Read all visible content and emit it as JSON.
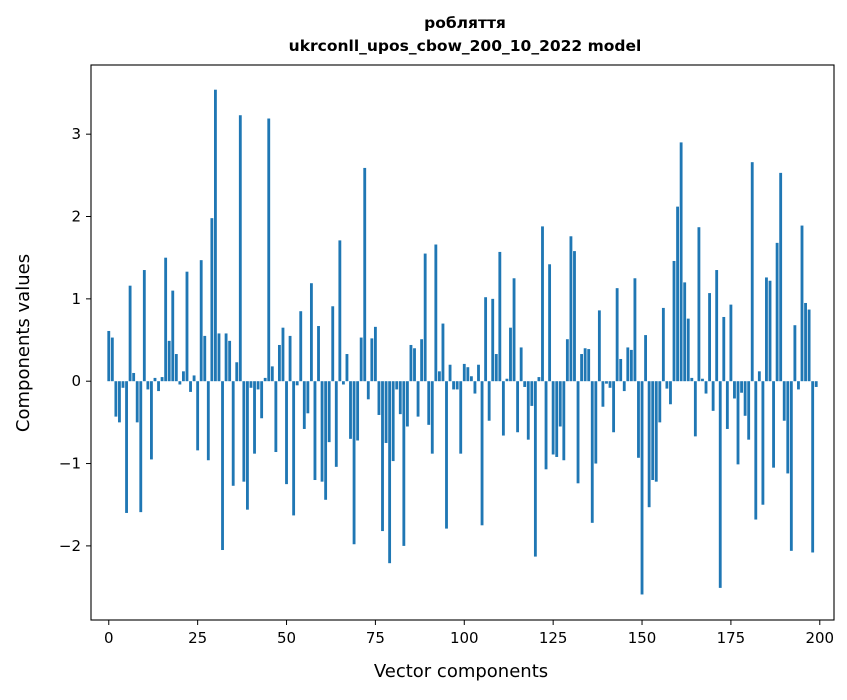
{
  "chart_data": {
    "type": "bar",
    "title_line1": "робляття",
    "title_line2": "ukrconll_upos_cbow_200_10_2022 model",
    "xlabel": "Vector components",
    "ylabel": "Components values",
    "xlim": [
      -5,
      204
    ],
    "ylim": [
      -2.9,
      3.84
    ],
    "xticks": [
      0,
      25,
      50,
      75,
      100,
      125,
      150,
      175,
      200
    ],
    "yticks": [
      -2,
      -1,
      0,
      1,
      2,
      3
    ],
    "ytick_labels": [
      "−2",
      "−1",
      "0",
      "1",
      "2",
      "3"
    ],
    "bar_color": "#1f77b4",
    "values": [
      0.61,
      0.53,
      -0.43,
      -0.5,
      -0.08,
      -1.6,
      1.16,
      0.1,
      -0.5,
      -1.59,
      1.35,
      -0.1,
      -0.95,
      0.04,
      -0.12,
      0.05,
      1.5,
      0.49,
      1.1,
      0.33,
      -0.04,
      0.12,
      1.33,
      -0.13,
      0.07,
      -0.84,
      1.47,
      0.55,
      -0.96,
      1.98,
      3.54,
      0.58,
      -2.05,
      0.58,
      0.49,
      -1.27,
      0.23,
      3.23,
      -1.22,
      -1.56,
      -0.08,
      -0.88,
      -0.1,
      -0.45,
      0.04,
      3.19,
      0.18,
      -0.86,
      0.44,
      0.65,
      -1.25,
      0.55,
      -1.63,
      -0.05,
      0.85,
      -0.58,
      -0.39,
      1.19,
      -1.2,
      0.67,
      -1.22,
      -1.44,
      -0.74,
      0.91,
      -1.04,
      1.71,
      -0.04,
      0.33,
      -0.7,
      -1.98,
      -0.72,
      0.53,
      2.59,
      -0.22,
      0.52,
      0.66,
      -0.41,
      -1.82,
      -0.75,
      -2.21,
      -0.97,
      -0.1,
      -0.4,
      -2.0,
      -0.55,
      0.44,
      0.4,
      -0.43,
      0.51,
      1.55,
      -0.53,
      -0.88,
      1.66,
      0.12,
      0.7,
      -1.79,
      0.2,
      -0.1,
      -0.1,
      -0.88,
      0.21,
      0.17,
      0.06,
      -0.15,
      0.2,
      -1.75,
      1.02,
      -0.48,
      1.0,
      0.33,
      1.57,
      -0.66,
      0.03,
      0.65,
      1.25,
      -0.62,
      0.41,
      -0.07,
      -0.71,
      -0.3,
      -2.13,
      0.05,
      1.88,
      -1.07,
      1.42,
      -0.89,
      -0.92,
      -0.55,
      -0.96,
      0.51,
      1.76,
      1.58,
      -1.24,
      0.33,
      0.4,
      0.39,
      -1.72,
      -1.0,
      0.86,
      -0.31,
      -0.03,
      -0.08,
      -0.62,
      1.13,
      0.27,
      -0.12,
      0.41,
      0.38,
      1.25,
      -0.93,
      -2.59,
      0.56,
      -1.53,
      -1.2,
      -1.22,
      -0.5,
      0.89,
      -0.09,
      -0.28,
      1.46,
      2.12,
      2.9,
      1.2,
      0.76,
      0.04,
      -0.67,
      1.87,
      0.03,
      -0.15,
      1.07,
      -0.36,
      1.35,
      -2.51,
      0.78,
      -0.58,
      0.93,
      -0.21,
      -1.01,
      -0.14,
      -0.42,
      -0.71,
      2.66,
      -1.68,
      0.12,
      -1.5,
      1.26,
      1.22,
      -1.05,
      1.68,
      2.53,
      -0.48,
      -1.12,
      -2.06,
      0.68,
      -0.1,
      1.89,
      0.95,
      0.87,
      -2.08,
      -0.07
    ]
  }
}
